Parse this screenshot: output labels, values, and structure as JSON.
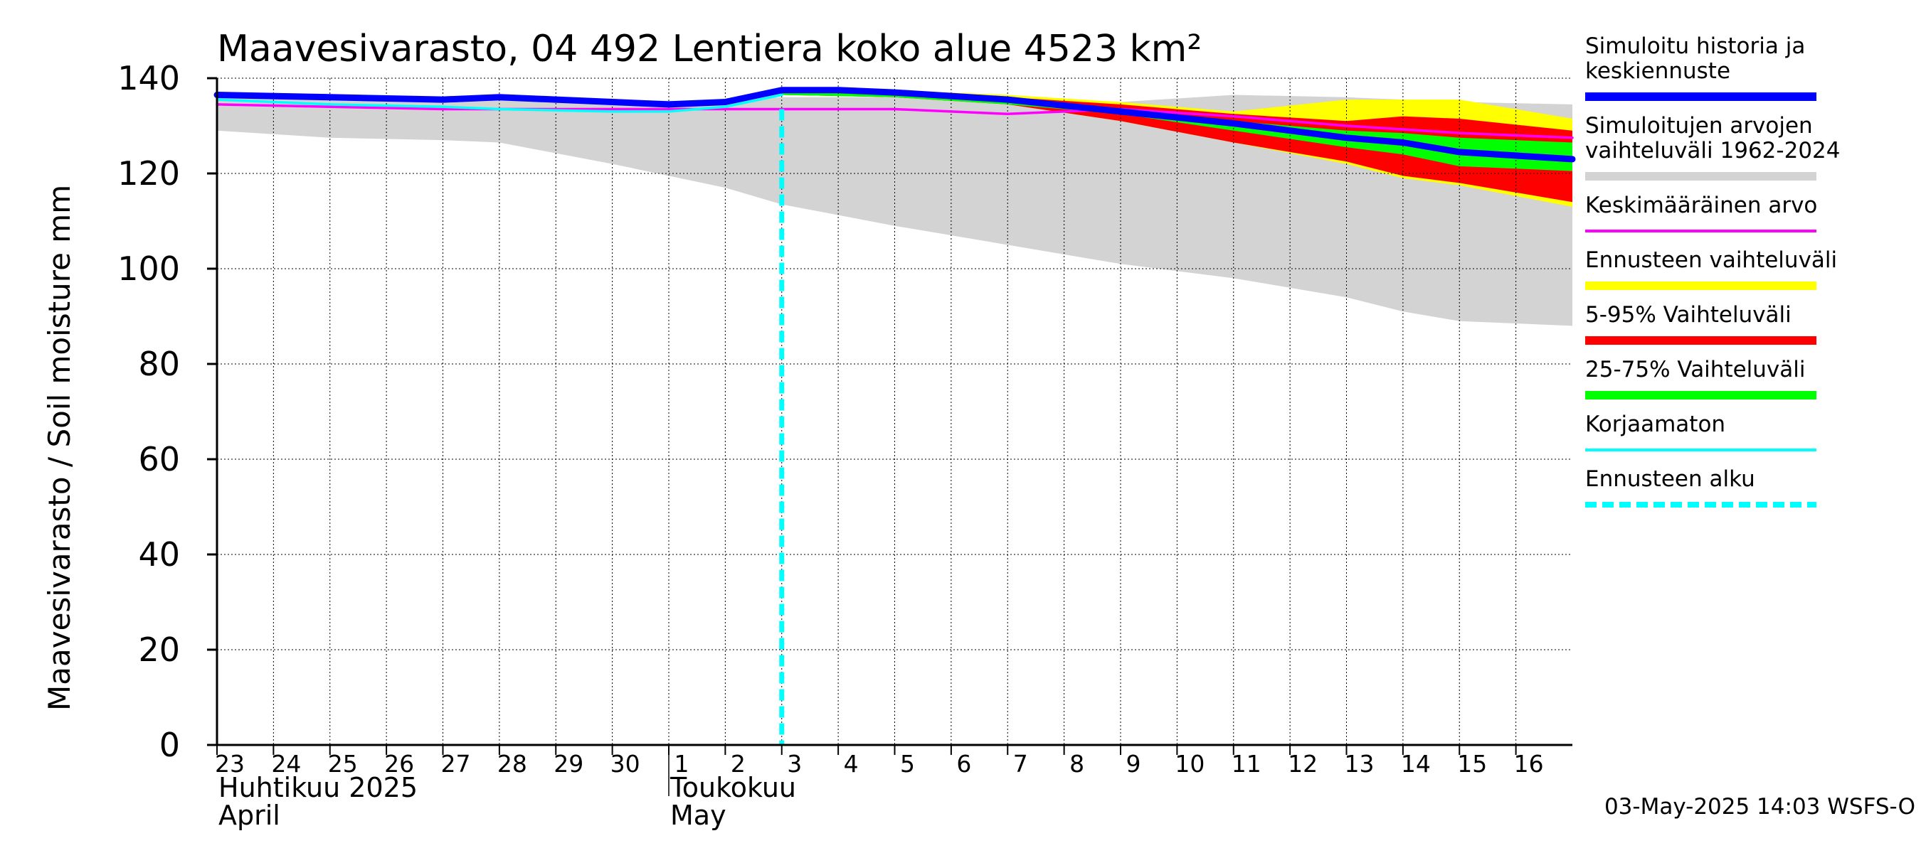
{
  "chart_data": {
    "type": "area",
    "title": "Maavesivarasto, 04 492 Lentiera koko alue 4523 km²",
    "ylabel": "Maavesivarasto / Soil moisture   mm",
    "ylim": [
      0,
      140
    ],
    "yticks": [
      0,
      20,
      40,
      60,
      80,
      100,
      120,
      140
    ],
    "grid": true,
    "legend_position": "right",
    "x_tick_labels": [
      "23",
      "24",
      "25",
      "26",
      "27",
      "28",
      "29",
      "30",
      "1",
      "2",
      "3",
      "4",
      "5",
      "6",
      "7",
      "8",
      "9",
      "10",
      "11",
      "12",
      "13",
      "14",
      "15",
      "16"
    ],
    "x_dates": [
      "2025-04-23",
      "2025-04-24",
      "2025-04-25",
      "2025-04-26",
      "2025-04-27",
      "2025-04-28",
      "2025-04-29",
      "2025-04-30",
      "2025-05-01",
      "2025-05-02",
      "2025-05-03",
      "2025-05-04",
      "2025-05-05",
      "2025-05-06",
      "2025-05-07",
      "2025-05-08",
      "2025-05-09",
      "2025-05-10",
      "2025-05-11",
      "2025-05-12",
      "2025-05-13",
      "2025-05-14",
      "2025-05-15",
      "2025-05-16"
    ],
    "xlim": [
      "2025-04-23",
      "2025-05-17"
    ],
    "month_labels": [
      {
        "line1": "Huhtikuu  2025",
        "line2": "April",
        "start": "2025-04-23"
      },
      {
        "line1": "Toukokuu",
        "line2": "May",
        "start": "2025-05-01"
      }
    ],
    "forecast_start": "2025-05-03",
    "timestamp": "03-May-2025 14:03 WSFS-O",
    "series": [
      {
        "name": "Simuloitujen arvojen vaihteluväli 1962-2024",
        "kind": "band",
        "color": "#d3d3d3",
        "x": [
          "2025-04-23",
          "2025-04-25",
          "2025-04-27",
          "2025-04-28",
          "2025-04-30",
          "2025-05-02",
          "2025-05-03",
          "2025-05-05",
          "2025-05-07",
          "2025-05-09",
          "2025-05-11",
          "2025-05-13",
          "2025-05-14",
          "2025-05-15",
          "2025-05-17"
        ],
        "lower": [
          129,
          127.5,
          127,
          126.5,
          122,
          117,
          113.5,
          109,
          105,
          101,
          98,
          94,
          91,
          89,
          88
        ],
        "upper": [
          137,
          136.5,
          136,
          136.5,
          135.5,
          135,
          136,
          136,
          135.5,
          135,
          136.5,
          136,
          135.5,
          135,
          134.5
        ]
      },
      {
        "name": "Ennusteen vaihteluväli",
        "kind": "band",
        "color": "#ffff00",
        "x": [
          "2025-05-03",
          "2025-05-05",
          "2025-05-07",
          "2025-05-09",
          "2025-05-11",
          "2025-05-13",
          "2025-05-14",
          "2025-05-15",
          "2025-05-17"
        ],
        "lower": [
          136.5,
          136,
          134.5,
          131,
          126.5,
          122,
          119,
          117.5,
          113
        ],
        "upper": [
          137.5,
          137.5,
          136.5,
          135,
          133,
          135.5,
          135.5,
          135.5,
          131.5
        ]
      },
      {
        "name": "5-95% Vaihteluväli",
        "kind": "band",
        "color": "#ff0000",
        "x": [
          "2025-05-03",
          "2025-05-05",
          "2025-05-07",
          "2025-05-09",
          "2025-05-11",
          "2025-05-13",
          "2025-05-14",
          "2025-05-15",
          "2025-05-17"
        ],
        "lower": [
          136.5,
          136,
          134.5,
          131,
          126.5,
          122.5,
          119.5,
          118,
          114
        ],
        "upper": [
          137.5,
          137.5,
          136,
          134.5,
          132.5,
          131,
          132,
          131.5,
          129
        ]
      },
      {
        "name": "25-75% Vaihteluväli",
        "kind": "band",
        "color": "#00ff00",
        "x": [
          "2025-05-03",
          "2025-05-05",
          "2025-05-07",
          "2025-05-09",
          "2025-05-11",
          "2025-05-13",
          "2025-05-14",
          "2025-05-15",
          "2025-05-17"
        ],
        "lower": [
          136.5,
          136,
          134.5,
          132.5,
          129,
          125.5,
          124,
          121.5,
          120.5
        ],
        "upper": [
          137.5,
          137,
          135.5,
          133.5,
          131,
          129,
          128.5,
          127.5,
          126.5
        ]
      },
      {
        "name": "Keskimääräinen arvo",
        "kind": "line",
        "color": "#ff00ff",
        "x": [
          "2025-04-23",
          "2025-04-25",
          "2025-04-27",
          "2025-04-29",
          "2025-05-01",
          "2025-05-03",
          "2025-05-05",
          "2025-05-07",
          "2025-05-08",
          "2025-05-09",
          "2025-05-11",
          "2025-05-13",
          "2025-05-15",
          "2025-05-17"
        ],
        "values": [
          134.5,
          134,
          133.5,
          133.5,
          133.5,
          133.5,
          133.5,
          132.5,
          133,
          133.5,
          132,
          130,
          128.5,
          127.5
        ]
      },
      {
        "name": "Korjaamaton",
        "kind": "line",
        "color": "#00ffff",
        "x": [
          "2025-04-23",
          "2025-04-25",
          "2025-04-27",
          "2025-04-28",
          "2025-04-30",
          "2025-05-01",
          "2025-05-02",
          "2025-05-03"
        ],
        "values": [
          135.5,
          134.5,
          134,
          133.5,
          133,
          133,
          134,
          136.5
        ]
      },
      {
        "name": "Simuloitu historia ja keskiennuste",
        "kind": "line",
        "color": "#0000ff",
        "x": [
          "2025-04-23",
          "2025-04-25",
          "2025-04-27",
          "2025-04-28",
          "2025-04-29",
          "2025-04-30",
          "2025-05-01",
          "2025-05-02",
          "2025-05-03",
          "2025-05-04",
          "2025-05-05",
          "2025-05-07",
          "2025-05-09",
          "2025-05-11",
          "2025-05-13",
          "2025-05-14",
          "2025-05-15",
          "2025-05-17"
        ],
        "values": [
          136.5,
          136,
          135.5,
          136,
          135.5,
          135,
          134.5,
          135,
          137.5,
          137.5,
          137,
          135.5,
          133,
          130.5,
          127.5,
          126.5,
          124.5,
          123
        ]
      }
    ],
    "legend": [
      {
        "lines": [
          "Simuloitu historia ja",
          "keskiennuste"
        ],
        "color": "#0000ff",
        "style": "solid"
      },
      {
        "lines": [
          "Simuloitujen arvojen",
          "vaihteluväli 1962-2024"
        ],
        "color": "#d3d3d3",
        "style": "solid"
      },
      {
        "lines": [
          "Keskimääräinen arvo"
        ],
        "color": "#ff00ff",
        "style": "thin"
      },
      {
        "lines": [
          "Ennusteen vaihteluväli"
        ],
        "color": "#ffff00",
        "style": "solid"
      },
      {
        "lines": [
          "5-95% Vaihteluväli"
        ],
        "color": "#ff0000",
        "style": "solid"
      },
      {
        "lines": [
          "25-75% Vaihteluväli"
        ],
        "color": "#00ff00",
        "style": "solid"
      },
      {
        "lines": [
          "Korjaamaton"
        ],
        "color": "#00ffff",
        "style": "thin"
      },
      {
        "lines": [
          "Ennusteen alku"
        ],
        "color": "#00ffff",
        "style": "dashed"
      }
    ]
  }
}
